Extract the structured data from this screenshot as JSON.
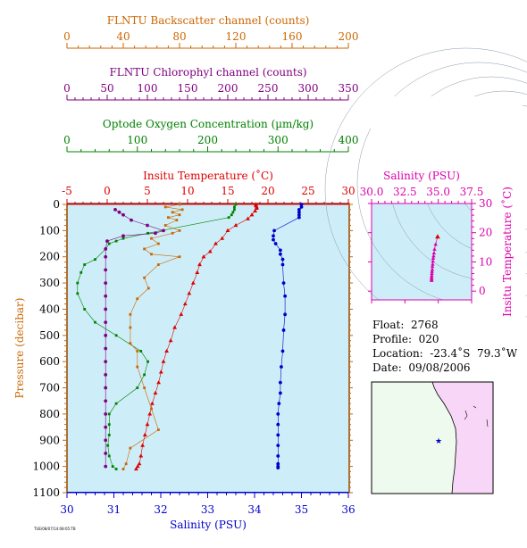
{
  "colors": {
    "backscatter": "#cc6600",
    "chlorophyll": "#800080",
    "oxygen": "#008000",
    "temperature": "#dd0000",
    "salinity": "#0000cc",
    "inset_salinity": "#dd00aa",
    "pressure_axis": "#cc6600",
    "plot_bg": "#cdeef8",
    "map_land": "#f7d6f7",
    "map_sea": "#eefaee"
  },
  "axes": {
    "backscatter": {
      "label": "FLNTU Backscatter channel (counts)",
      "ticks": [
        "0",
        "40",
        "80",
        "120",
        "160",
        "200"
      ],
      "range": [
        0,
        200
      ]
    },
    "chlorophyll": {
      "label": "FLNTU Chlorophyl channel (counts)",
      "ticks": [
        "0",
        "50",
        "100",
        "150",
        "200",
        "250",
        "300",
        "350"
      ],
      "range": [
        0,
        350
      ]
    },
    "oxygen": {
      "label": "Optode Oxygen Concentration (µm/kg)",
      "ticks": [
        "0",
        "100",
        "200",
        "300",
        "400"
      ],
      "range": [
        0,
        400
      ]
    },
    "temperature": {
      "label": "Insitu Temperature (˚C)",
      "ticks": [
        "-5",
        "0",
        "5",
        "10",
        "15",
        "20",
        "25",
        "30"
      ],
      "range": [
        -5,
        30
      ]
    },
    "pressure": {
      "label": "Pressure (decibar)",
      "ticks": [
        "0",
        "100",
        "200",
        "300",
        "400",
        "500",
        "600",
        "700",
        "800",
        "900",
        "1000",
        "1100"
      ],
      "range": [
        0,
        1100
      ]
    },
    "salinity": {
      "label": "Salinity (PSU)",
      "ticks": [
        "30",
        "31",
        "32",
        "33",
        "34",
        "35",
        "36"
      ],
      "range": [
        30,
        36
      ]
    }
  },
  "inset": {
    "xlabel": "Salinity (PSU)",
    "ylabel": "Insitu Temperature (˚C)",
    "xticks": [
      "30.0",
      "32.5",
      "35.0",
      "37.5"
    ],
    "yticks": [
      "0",
      "10",
      "20",
      "30"
    ],
    "xrange": [
      30,
      37.5
    ],
    "yrange": [
      -3,
      30
    ]
  },
  "info": {
    "float": "Float:  2768",
    "profile": "Profile:  020",
    "location": "Location:  -23.4˚S  79.3˚W",
    "date": "Date:  09/08/2006"
  },
  "footer_text": "TUE/08/07/14:08:05:TB",
  "map": {
    "float_marker": "star-icon"
  },
  "chart_data": {
    "type": "scatter",
    "pressure_range": [
      0,
      1100
    ],
    "series": [
      {
        "key": "temperature",
        "axis": "temperature",
        "marker": "triangle",
        "x": [
          18.5,
          18.5,
          18.6,
          18.6,
          18.4,
          18.0,
          17.5,
          16.0,
          15.0,
          14.3,
          13.5,
          12.8,
          12.0,
          11.5,
          11.2,
          10.7,
          10.2,
          9.7,
          9.2,
          8.4,
          7.9,
          7.4,
          7.0,
          6.7,
          6.4,
          6.0,
          5.6,
          5.3,
          5.0,
          4.7,
          4.4,
          4.2,
          4.0,
          3.8,
          3.6
        ],
        "y": [
          0,
          5,
          10,
          15,
          25,
          40,
          55,
          80,
          100,
          130,
          150,
          180,
          200,
          230,
          260,
          300,
          340,
          380,
          420,
          470,
          520,
          560,
          600,
          640,
          680,
          720,
          760,
          800,
          840,
          880,
          920,
          960,
          990,
          1000,
          1010
        ]
      },
      {
        "key": "salinity",
        "axis": "salinity",
        "marker": "circle",
        "x": [
          35.0,
          35.0,
          34.95,
          34.95,
          34.95,
          34.95,
          34.42,
          34.4,
          34.4,
          34.45,
          34.55,
          34.55,
          34.6,
          34.6,
          34.62,
          34.65,
          34.65,
          34.62,
          34.6,
          34.57,
          34.55,
          34.55,
          34.52,
          34.5,
          34.5,
          34.5,
          34.5,
          34.5,
          34.5,
          34.5,
          34.5
        ],
        "y": [
          0,
          10,
          20,
          30,
          40,
          50,
          100,
          120,
          135,
          150,
          175,
          190,
          210,
          230,
          300,
          350,
          420,
          480,
          560,
          620,
          680,
          720,
          760,
          800,
          840,
          880,
          920,
          960,
          990,
          1000,
          1005
        ]
      },
      {
        "key": "oxygen",
        "axis": "oxygen",
        "marker": "square",
        "x": [
          240,
          238,
          238,
          236,
          234,
          230,
          115,
          80,
          70,
          60,
          55,
          40,
          25,
          20,
          15,
          15,
          25,
          40,
          70,
          105,
          115,
          110,
          100,
          70,
          60,
          60,
          60,
          58,
          60,
          65,
          70
        ],
        "y": [
          0,
          10,
          20,
          30,
          40,
          50,
          110,
          130,
          140,
          150,
          170,
          210,
          230,
          260,
          300,
          340,
          400,
          450,
          500,
          560,
          600,
          650,
          700,
          760,
          800,
          840,
          880,
          920,
          960,
          1000,
          1010
        ]
      },
      {
        "key": "chlorophyll",
        "axis": "chlorophyll",
        "marker": "circle",
        "x": [
          60,
          65,
          70,
          80,
          100,
          120,
          110,
          70,
          50,
          48,
          48,
          48,
          48,
          48,
          48,
          48,
          48,
          48,
          48,
          48,
          48,
          48,
          48,
          48,
          48,
          48,
          48
        ],
        "y": [
          20,
          30,
          40,
          60,
          80,
          100,
          110,
          120,
          140,
          170,
          200,
          250,
          300,
          350,
          400,
          450,
          500,
          550,
          600,
          650,
          700,
          750,
          800,
          850,
          900,
          950,
          1000
        ]
      },
      {
        "key": "backscatter",
        "axis": "backscatter",
        "marker": "square",
        "x": [
          80,
          70,
          82,
          75,
          80,
          72,
          78,
          70,
          80,
          75,
          60,
          65,
          55,
          60,
          80,
          65,
          55,
          58,
          50,
          45,
          45,
          45,
          50,
          50,
          55,
          60,
          65,
          45,
          42,
          40
        ],
        "y": [
          0,
          10,
          20,
          30,
          40,
          50,
          60,
          80,
          100,
          110,
          130,
          150,
          170,
          190,
          200,
          230,
          280,
          320,
          360,
          420,
          470,
          530,
          560,
          620,
          700,
          780,
          860,
          930,
          990,
          1010
        ]
      }
    ],
    "inset_series": {
      "salinity": [
        34.95,
        34.8,
        34.72,
        34.68,
        34.65,
        34.62,
        34.6,
        34.58,
        34.56,
        34.55,
        34.53,
        34.52,
        34.51,
        34.5,
        34.5,
        34.5,
        34.5
      ],
      "temperature": [
        18.6,
        16.0,
        14.3,
        13.0,
        12.0,
        11.2,
        10.2,
        9.2,
        8.4,
        7.4,
        6.7,
        6.0,
        5.3,
        4.7,
        4.2,
        3.8,
        3.6
      ]
    }
  }
}
